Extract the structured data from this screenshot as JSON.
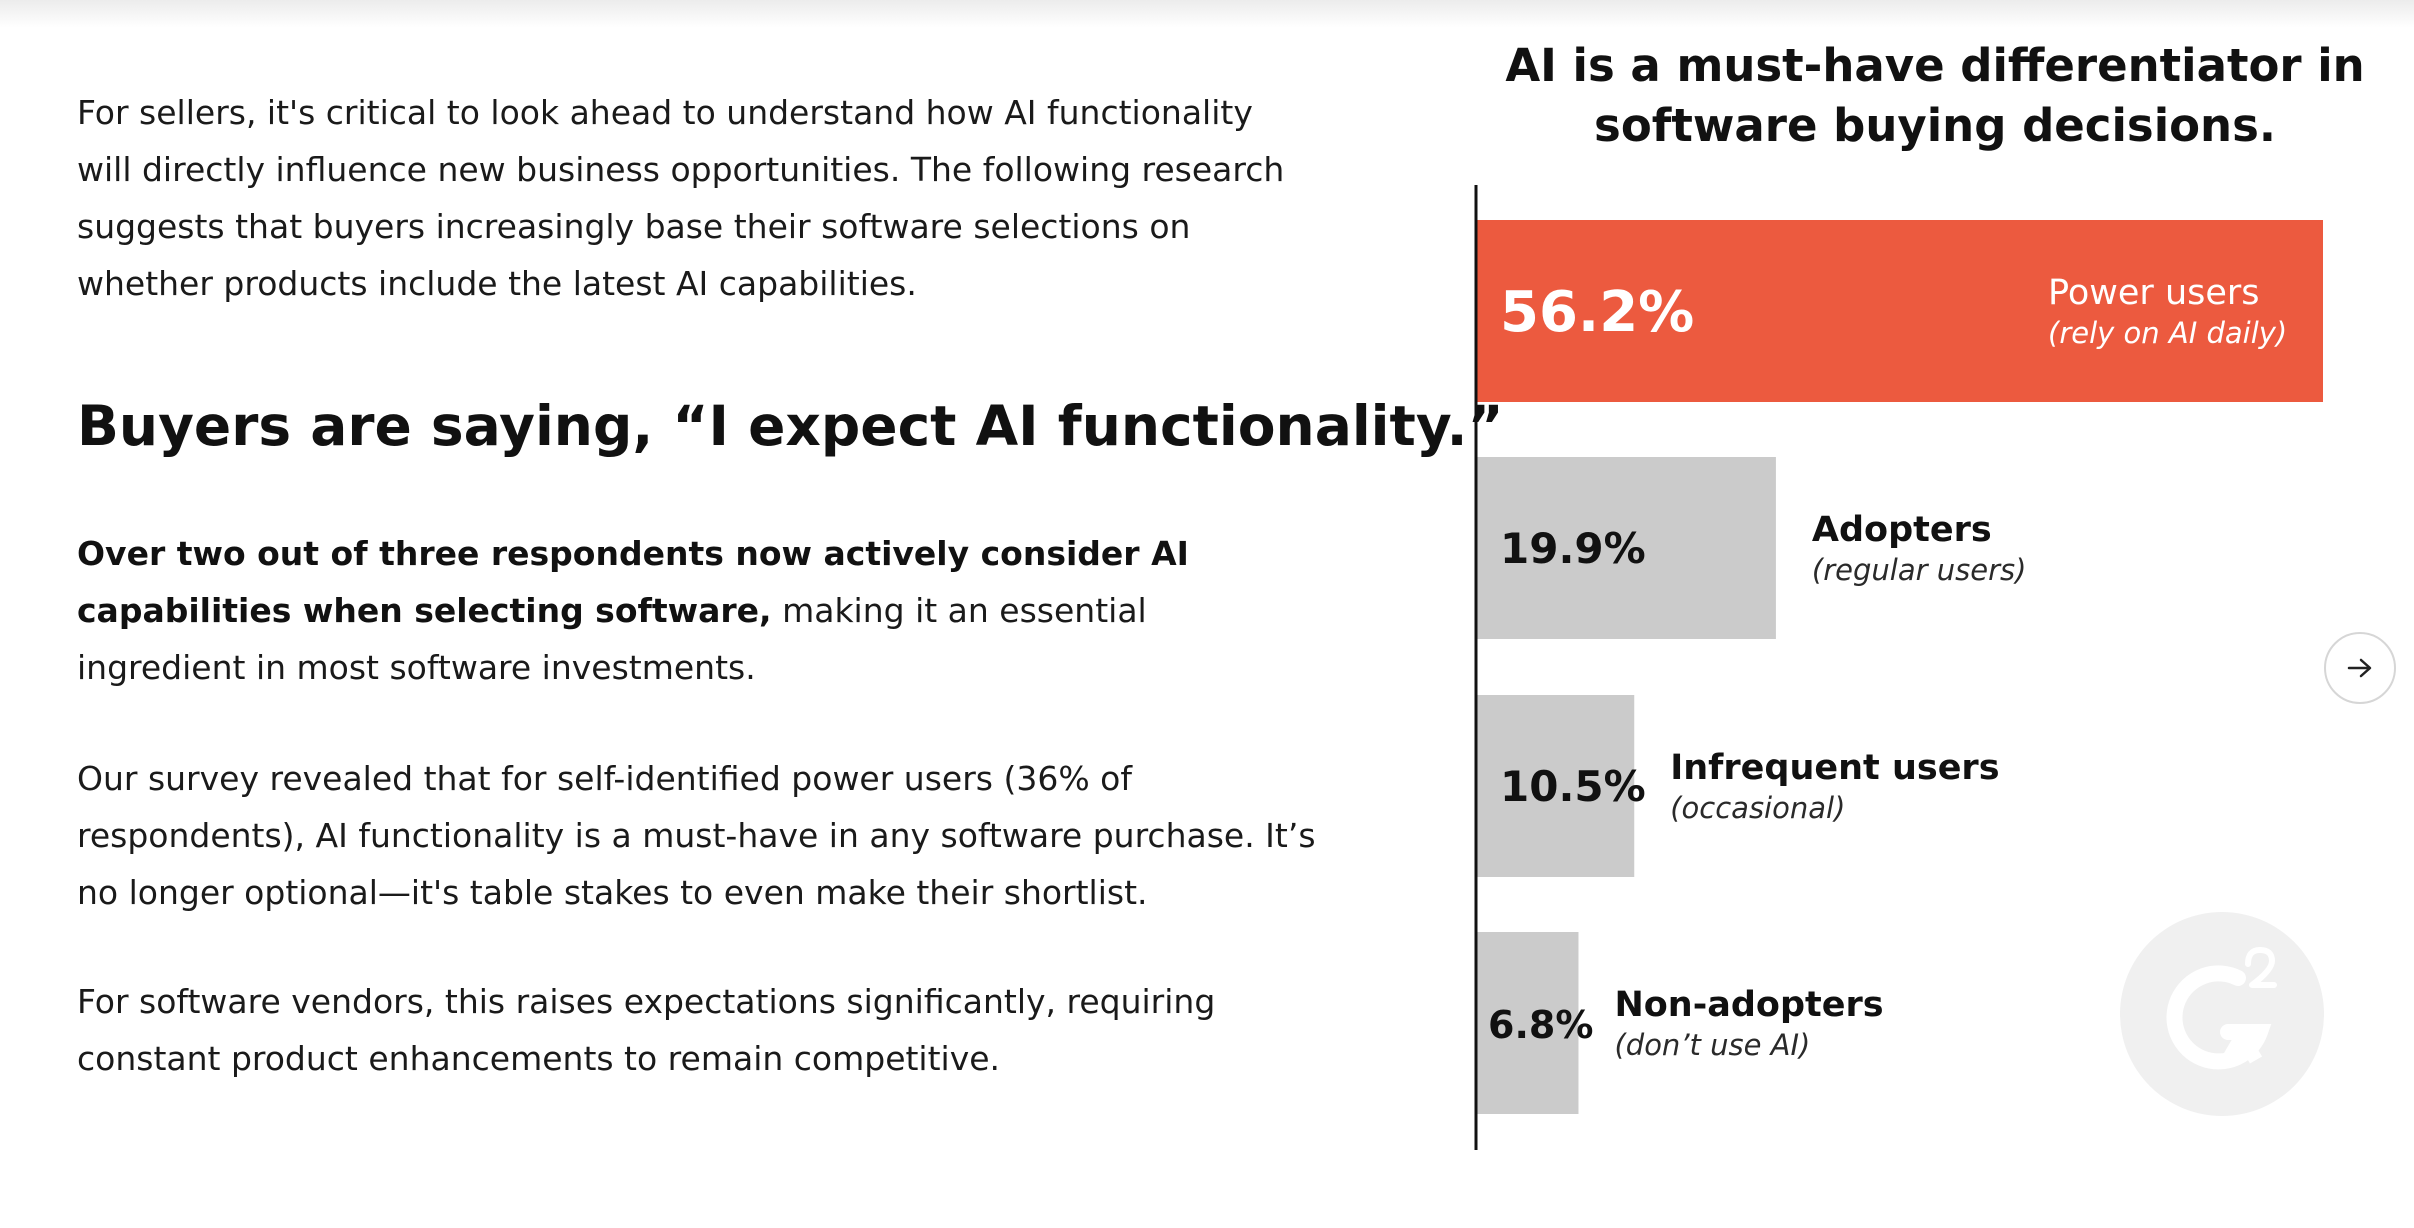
{
  "intro": {
    "paragraph": "For sellers, it's critical to look ahead to understand how AI functionality will directly influence new business opportunities. The following research suggests that buyers increasingly base their software selections on whether products include the latest AI capabilities."
  },
  "heading": "Buyers are saying, “I expect AI functionality.”",
  "body": {
    "paragraph_2_bold": "Over two out of three respondents now actively consider AI capabilities when selecting software,",
    "paragraph_2_rest": " making it an essential ingredient in most software investments.",
    "paragraph_3": "Our survey revealed that for self-identified power users (36% of respondents), AI functionality is a must-have in any software purchase. It’s no longer optional—it's table stakes to even make their shortlist.",
    "paragraph_4": "For software vendors, this raises expectations significantly, requiring constant product enhancements to remain competitive."
  },
  "chart_data": {
    "type": "bar",
    "orientation": "horizontal",
    "title": "AI is a must-have differentiator in software buying decisions.",
    "categories": [
      "Power users",
      "Adopters",
      "Infrequent users",
      "Non-adopters"
    ],
    "sublabels": [
      "(rely on AI daily)",
      "(regular users)",
      "(occasional)",
      "(don’t use AI)"
    ],
    "values": [
      56.2,
      19.9,
      10.5,
      6.8
    ],
    "value_labels": [
      "56.2%",
      "19.9%",
      "10.5%",
      "6.8%"
    ],
    "xlim": [
      0,
      56.2
    ],
    "grid": false,
    "colors": {
      "highlight": "#EC5A3F",
      "default": "#CBCBCB",
      "highlight_text": "#ffffff",
      "default_text": "#111111"
    }
  },
  "controls": {
    "next_icon": "arrow-right-icon"
  },
  "brand": {
    "logo_icon": "g2-logo-icon",
    "logo_color": "#f0f0f0"
  }
}
